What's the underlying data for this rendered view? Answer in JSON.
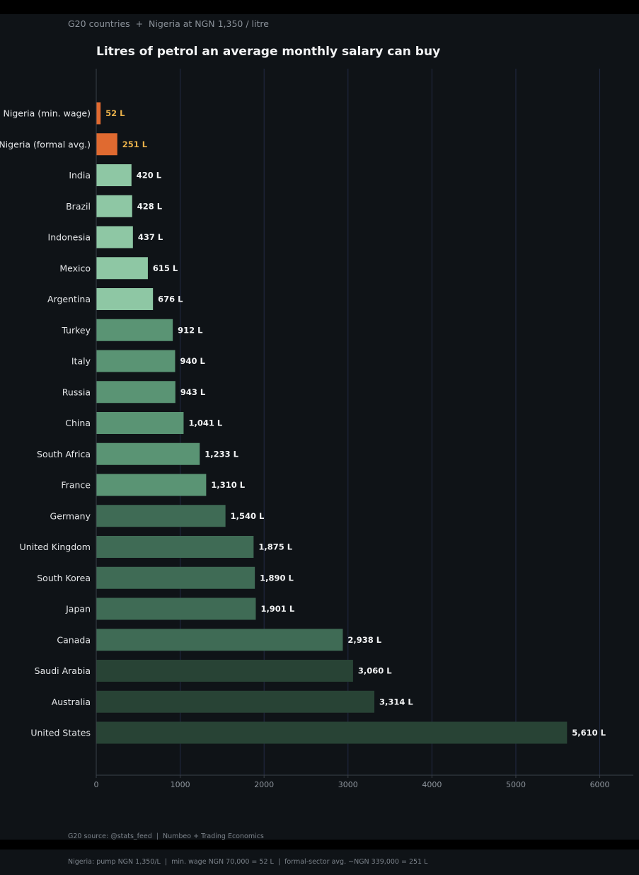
{
  "header": {
    "subtitle": "G20 countries  +  Nigeria at NGN 1,350 / litre",
    "title": "Litres of petrol an average monthly salary can buy"
  },
  "footer": {
    "line1": "G20 source: @stats_feed  |  Numbeo + Trading Economics",
    "line2": "Nigeria: pump NGN 1,350/L  |  min. wage NGN 70,000 = 52 L  |  formal-sector avg. ~NGN 339,000 = 251 L"
  },
  "chart_data": {
    "type": "bar",
    "orientation": "horizontal",
    "title": "Litres of petrol an average monthly salary can buy",
    "xlim": [
      0,
      6400
    ],
    "x_ticks": [
      0,
      1000,
      2000,
      3000,
      4000,
      5000,
      6000
    ],
    "grid": "vertical",
    "categories": [
      "Nigeria (min. wage)",
      "Nigeria (formal avg.)",
      "India",
      "Brazil",
      "Indonesia",
      "Mexico",
      "Argentina",
      "Turkey",
      "Italy",
      "Russia",
      "China",
      "South Africa",
      "France",
      "Germany",
      "United Kingdom",
      "South Korea",
      "Japan",
      "Canada",
      "Saudi Arabia",
      "Australia",
      "United States"
    ],
    "values": [
      52,
      251,
      420,
      428,
      437,
      615,
      676,
      912,
      940,
      943,
      1041,
      1233,
      1310,
      1540,
      1875,
      1890,
      1901,
      2938,
      3060,
      3314,
      5610
    ],
    "value_labels": [
      "52 L",
      "251 L",
      "420 L",
      "428 L",
      "437 L",
      "615 L",
      "676 L",
      "912 L",
      "940 L",
      "943 L",
      "1,041 L",
      "1,233 L",
      "1,310 L",
      "1,540 L",
      "1,875 L",
      "1,890 L",
      "1,901 L",
      "2,938 L",
      "3,060 L",
      "3,314 L",
      "5,610 L"
    ],
    "colors": {
      "nigeria_bar": "#e06a30",
      "nigeria_label": "#e8b04a",
      "label": "#f2f3f4",
      "tier_light": "#8ec7a4",
      "tier_mid": "#5a9474",
      "tier_dark": "#3f6b55",
      "tier_darkest": "#284335",
      "grid": "#222a44",
      "axis": "#3a4048"
    },
    "bar_colors": [
      "#e06a30",
      "#e06a30",
      "#8ec7a4",
      "#8ec7a4",
      "#8ec7a4",
      "#8ec7a4",
      "#8ec7a4",
      "#5a9474",
      "#5a9474",
      "#5a9474",
      "#5a9474",
      "#5a9474",
      "#5a9474",
      "#3f6b55",
      "#3f6b55",
      "#3f6b55",
      "#3f6b55",
      "#3f6b55",
      "#284335",
      "#284335",
      "#284335"
    ],
    "label_colors": [
      "#e8b04a",
      "#e8b04a",
      "#f2f3f4",
      "#f2f3f4",
      "#f2f3f4",
      "#f2f3f4",
      "#f2f3f4",
      "#f2f3f4",
      "#f2f3f4",
      "#f2f3f4",
      "#f2f3f4",
      "#f2f3f4",
      "#f2f3f4",
      "#f2f3f4",
      "#f2f3f4",
      "#f2f3f4",
      "#f2f3f4",
      "#f2f3f4",
      "#f2f3f4",
      "#f2f3f4",
      "#f2f3f4"
    ]
  }
}
